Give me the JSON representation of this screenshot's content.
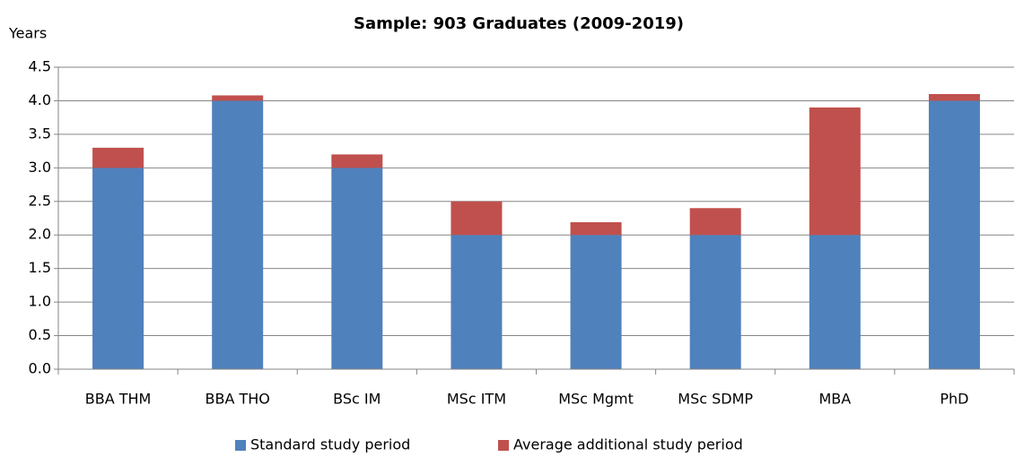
{
  "chart_data": {
    "type": "stacked_bar",
    "title": "Sample: 903 Graduates (2009-2019)",
    "y_label": "Years",
    "categories": [
      "BBA THM",
      "BBA THO",
      "BSc IM",
      "MSc ITM",
      "MSc Mgmt",
      "MSc SDMP",
      "MBA",
      "PhD"
    ],
    "series": [
      {
        "name": "Standard study period",
        "color": "#4f81bd",
        "values": [
          3,
          4,
          3,
          2,
          2,
          2,
          2,
          4
        ]
      },
      {
        "name": "Average additional study period",
        "color": "#c0504d",
        "values": [
          0.3,
          0.08,
          0.2,
          0.5,
          0.19,
          0.4,
          1.9,
          0.1
        ]
      }
    ],
    "ylim": [
      0,
      4.5
    ],
    "yticks": [
      {
        "value": 0,
        "label": "0.0"
      },
      0.5,
      {
        "value": 1,
        "label": "1.0"
      },
      1.5,
      {
        "value": 2,
        "label": "2.0"
      },
      2.5,
      {
        "value": 3,
        "label": "3.0"
      },
      3.5,
      {
        "value": 4,
        "label": "4.0"
      },
      4.5
    ],
    "grid": true,
    "legend": "bottom"
  }
}
